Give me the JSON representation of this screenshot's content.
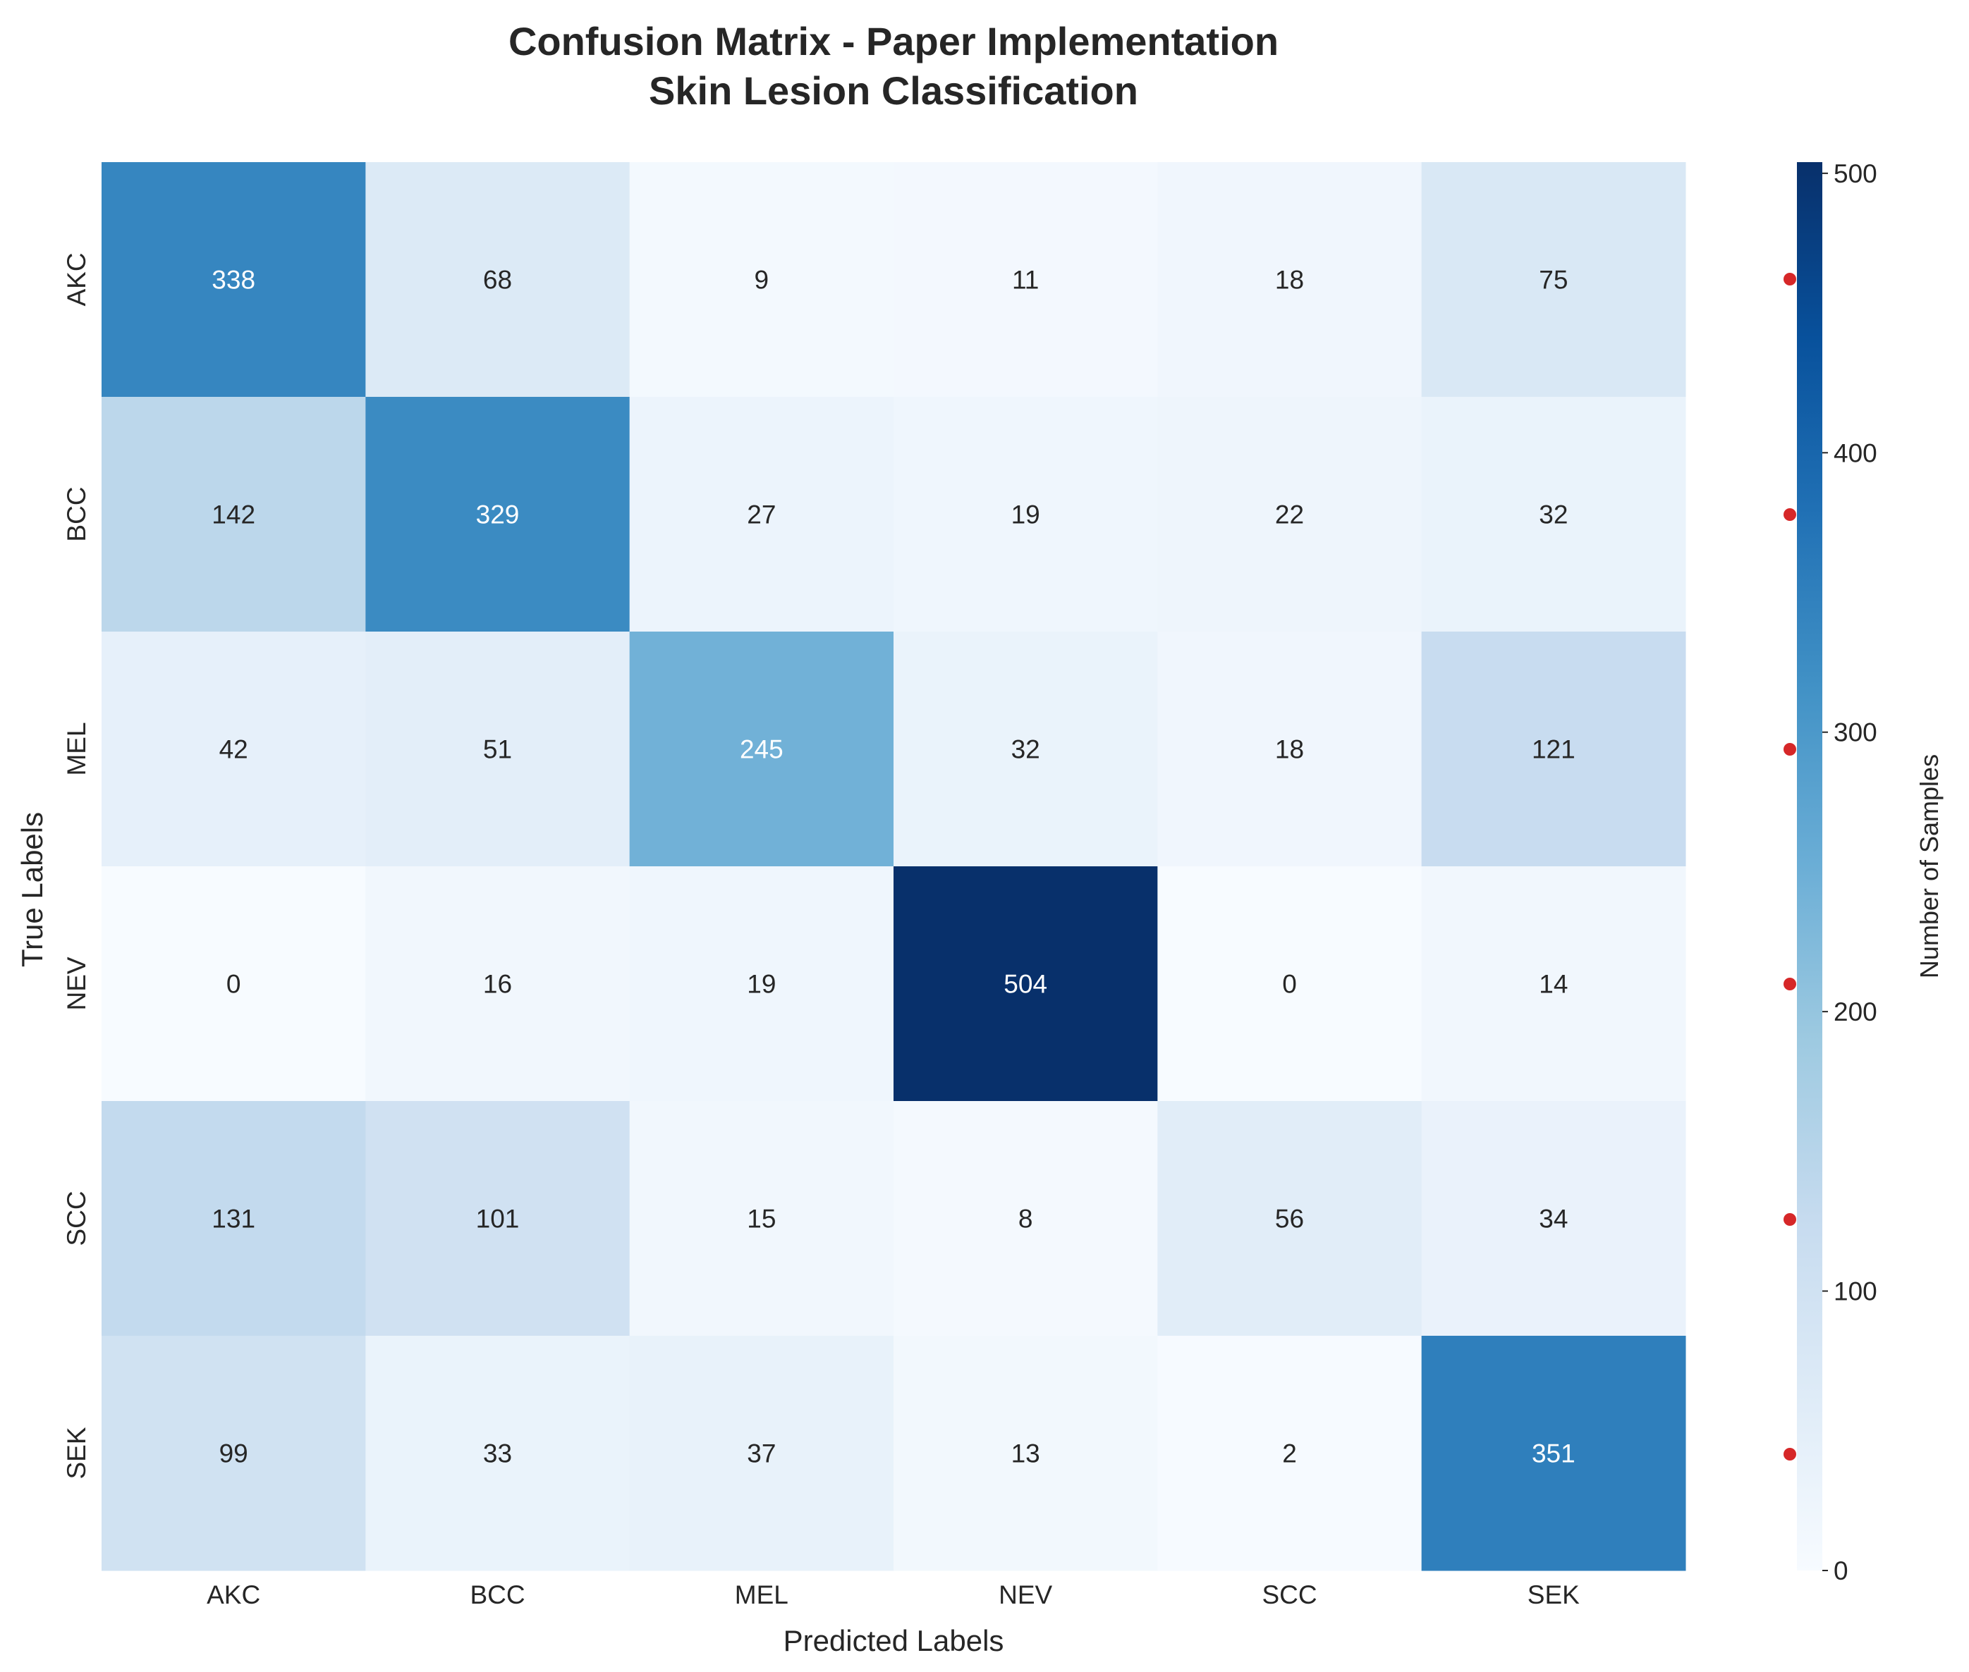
{
  "chart_data": {
    "type": "heatmap",
    "title_line1": "Confusion Matrix - Paper Implementation",
    "title_line2": "Skin Lesion Classification",
    "xlabel": "Predicted Labels",
    "ylabel": "True Labels",
    "x_categories": [
      "AKC",
      "BCC",
      "MEL",
      "NEV",
      "SCC",
      "SEK"
    ],
    "y_categories": [
      "AKC",
      "BCC",
      "MEL",
      "NEV",
      "SCC",
      "SEK"
    ],
    "matrix": [
      [
        338,
        68,
        9,
        11,
        18,
        75
      ],
      [
        142,
        329,
        27,
        19,
        22,
        32
      ],
      [
        42,
        51,
        245,
        32,
        18,
        121
      ],
      [
        0,
        16,
        19,
        504,
        0,
        14
      ],
      [
        131,
        101,
        15,
        8,
        56,
        34
      ],
      [
        99,
        33,
        37,
        13,
        2,
        351
      ]
    ],
    "colorbar": {
      "label": "Number of Samples",
      "vmin": 0,
      "vmax": 504,
      "ticks": [
        "0",
        "100",
        "200",
        "300",
        "400",
        "500"
      ],
      "colormap": "Blues"
    },
    "annotation_colors": {
      "light_text": "#ffffff",
      "dark_text": "#262626"
    }
  }
}
